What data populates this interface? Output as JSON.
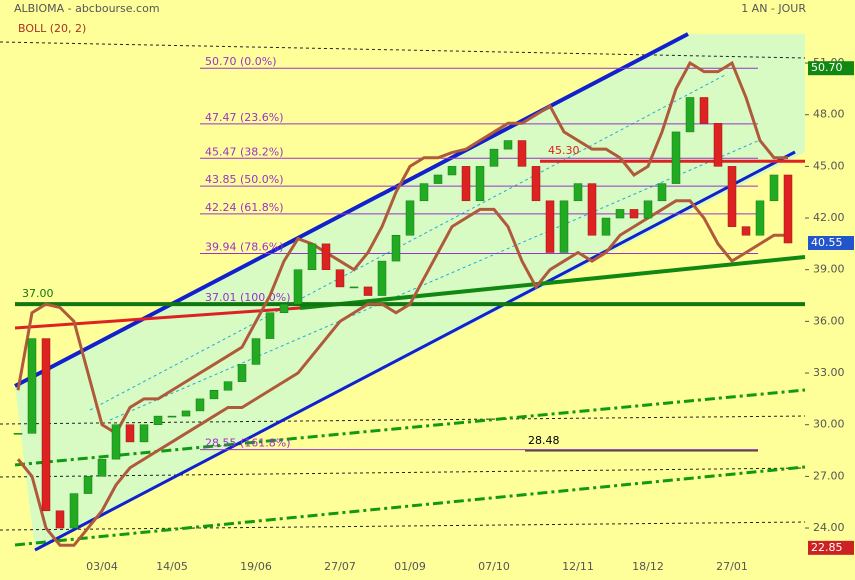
{
  "header": {
    "title": "ALBIOMA - abcbourse.com",
    "period": "1 AN - JOUR",
    "indicator": "BOLL (20, 2)"
  },
  "chart_data": {
    "type": "candlestick",
    "categories": [
      null,
      null,
      null,
      null,
      null,
      null,
      "03/04",
      null,
      null,
      null,
      null,
      "14/05",
      null,
      null,
      null,
      null,
      null,
      "19/06",
      null,
      null,
      null,
      null,
      null,
      "27/07",
      null,
      null,
      null,
      null,
      "01/09",
      null,
      null,
      null,
      null,
      null,
      "07/10",
      null,
      null,
      null,
      null,
      null,
      "12/11",
      null,
      null,
      null,
      null,
      "18/12",
      null,
      null,
      null,
      null,
      null,
      "27/01",
      null,
      null,
      null,
      null
    ],
    "series": [
      {
        "name": "ALBIOMA",
        "color": "#22aa22",
        "values": [
          29.5,
          35,
          25,
          24,
          26,
          27,
          28,
          30,
          29,
          30,
          30.5,
          30.5,
          30.8,
          31.5,
          32,
          32.5,
          33.5,
          35,
          36.5,
          37,
          39,
          40.5,
          39,
          38,
          38,
          37.5,
          39.5,
          41,
          43,
          44,
          44.5,
          45,
          43,
          45,
          46,
          46.5,
          45,
          43,
          40,
          43,
          44,
          41,
          42,
          42.5,
          42,
          43,
          44,
          47,
          49,
          47.5,
          45,
          41.5,
          41,
          43,
          44.5,
          40.55
        ]
      },
      {
        "name": "BOLL sup",
        "color": "#b05a3c",
        "values": [
          32,
          36.5,
          37,
          36.8,
          36,
          33,
          30,
          29.5,
          31,
          31.5,
          31.5,
          32,
          32.5,
          33,
          33.5,
          34,
          34.5,
          36,
          37.5,
          39.5,
          40.8,
          40.5,
          40,
          39.5,
          39,
          40,
          41.5,
          43.5,
          45,
          45.5,
          45.5,
          45.8,
          46,
          46.5,
          47,
          47.5,
          47.5,
          48,
          48.5,
          47,
          46.5,
          46,
          46,
          45.5,
          44.5,
          45,
          47,
          49.5,
          51,
          50.5,
          50.5,
          51,
          49,
          46.5,
          45.5,
          45.5
        ]
      },
      {
        "name": "BOLL inf",
        "color": "#b05a3c",
        "values": [
          28,
          27,
          24,
          23,
          23,
          24,
          25,
          26.5,
          27.5,
          28,
          28.5,
          29,
          29.5,
          30,
          30.5,
          31,
          31,
          31.5,
          32,
          32.5,
          33,
          34,
          35,
          36,
          36.5,
          37,
          37,
          36.5,
          37,
          38.5,
          40,
          41.5,
          42,
          42.5,
          42.5,
          41.5,
          39.5,
          38,
          39,
          39.5,
          40,
          39.5,
          40,
          41,
          41.5,
          42,
          42.5,
          43,
          43,
          42,
          40.5,
          39.5,
          40,
          40.5,
          41,
          41
        ]
      }
    ],
    "ylim": [
      22.26,
      54.66
    ],
    "yticks": [
      {
        "value": 24,
        "label": "24.00"
      },
      {
        "value": 27,
        "label": "27.00"
      },
      {
        "value": 30,
        "label": "30.00"
      },
      {
        "value": 33,
        "label": "33.00"
      },
      {
        "value": 36,
        "label": "36.00"
      },
      {
        "value": 39,
        "label": "39.00"
      },
      {
        "value": 42,
        "label": "42.00"
      },
      {
        "value": 45,
        "label": "45.00"
      },
      {
        "value": 48,
        "label": "48.00"
      },
      {
        "value": 51,
        "label": "51.00"
      }
    ],
    "fibonacci": [
      {
        "value": 50.7,
        "label": "50.70  (0.0%)"
      },
      {
        "value": 47.47,
        "label": "47.47  (23.6%)"
      },
      {
        "value": 45.47,
        "label": "45.47  (38.2%)"
      },
      {
        "value": 43.85,
        "label": "43.85  (50.0%)"
      },
      {
        "value": 42.24,
        "label": "42.24  (61.8%)"
      },
      {
        "value": 39.94,
        "label": "39.94  (78.6%)"
      },
      {
        "value": 37.01,
        "label": "37.01  (100.0%)"
      },
      {
        "value": 28.55,
        "label": "28.55  (161.8%)"
      }
    ],
    "levels": [
      {
        "value": 37,
        "label": "37.00",
        "color": "#117711"
      },
      {
        "value": 45.3,
        "label": "45.30",
        "color": "#dd2222"
      },
      {
        "value": 28.48,
        "label": "28.48",
        "color": "#000000"
      }
    ],
    "price_tags": [
      {
        "value": 50.7,
        "label": "50.70",
        "color": "#118811"
      },
      {
        "value": 40.55,
        "label": "40.55",
        "color": "#2255cc"
      },
      {
        "value": 22.85,
        "label": "22.85",
        "color": "#cc2222"
      }
    ]
  }
}
